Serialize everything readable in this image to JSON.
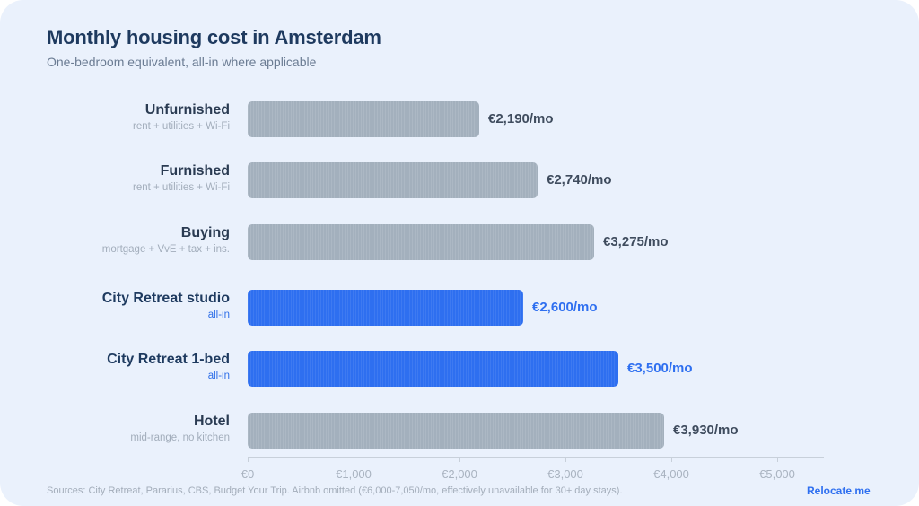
{
  "title": "Monthly housing cost in Amsterdam",
  "subtitle": "One-bedroom equivalent, all-in where applicable",
  "colors": {
    "neutral_bar": "#a3b0bd",
    "highlight_bar": "#2e6ff0",
    "title": "#1e3a5f",
    "background": "#eaf1fc"
  },
  "rows": [
    {
      "name": "Unfurnished",
      "note": "rent + utilities + Wi-Fi",
      "value_label": "€2,190/mo",
      "highlight": false
    },
    {
      "name": "Furnished",
      "note": "rent + utilities + Wi-Fi",
      "value_label": "€2,740/mo",
      "highlight": false
    },
    {
      "name": "Buying",
      "note": "mortgage + VvE + tax + ins.",
      "value_label": "€3,275/mo",
      "highlight": false
    },
    {
      "name": "City Retreat studio",
      "note": "all-in",
      "value_label": "€2,600/mo",
      "highlight": true
    },
    {
      "name": "City Retreat 1-bed",
      "note": "all-in",
      "value_label": "€3,500/mo",
      "highlight": true
    },
    {
      "name": "Hotel",
      "note": "mid-range, no kitchen",
      "value_label": "€3,930/mo",
      "highlight": false
    }
  ],
  "axis": {
    "ticks": [
      "€0",
      "€1,000",
      "€2,000",
      "€3,000",
      "€4,000",
      "€5,000"
    ]
  },
  "footer": {
    "sources": "Sources: City Retreat, Pararius, CBS, Budget Your Trip. Airbnb omitted (€6,000-7,050/mo, effectively unavailable for 30+ day stays).",
    "brand": "Relocate.me"
  },
  "chart_data": {
    "type": "bar",
    "orientation": "horizontal",
    "title": "Monthly housing cost in Amsterdam",
    "subtitle": "One-bedroom equivalent, all-in where applicable",
    "categories": [
      "Unfurnished",
      "Furnished",
      "Buying",
      "City Retreat studio",
      "City Retreat 1-bed",
      "Hotel"
    ],
    "category_notes": [
      "rent + utilities + Wi-Fi",
      "rent + utilities + Wi-Fi",
      "mortgage + VvE + tax + ins.",
      "all-in",
      "all-in",
      "mid-range, no kitchen"
    ],
    "values": [
      2190,
      2740,
      3275,
      2600,
      3500,
      3930
    ],
    "value_labels": [
      "€2,190/mo",
      "€2,740/mo",
      "€3,275/mo",
      "€2,600/mo",
      "€3,500/mo",
      "€3,930/mo"
    ],
    "highlighted": [
      "City Retreat studio",
      "City Retreat 1-bed"
    ],
    "xlabel": "",
    "ylabel": "",
    "xlim": [
      0,
      5400
    ],
    "xticks": [
      0,
      1000,
      2000,
      3000,
      4000,
      5000
    ],
    "xtick_labels": [
      "€0",
      "€1,000",
      "€2,000",
      "€3,000",
      "€4,000",
      "€5,000"
    ],
    "grid": false,
    "legend": null,
    "annotation": "Sources: City Retreat, Pararius, CBS, Budget Your Trip. Airbnb omitted (€6,000-7,050/mo, effectively unavailable for 30+ day stays)."
  }
}
